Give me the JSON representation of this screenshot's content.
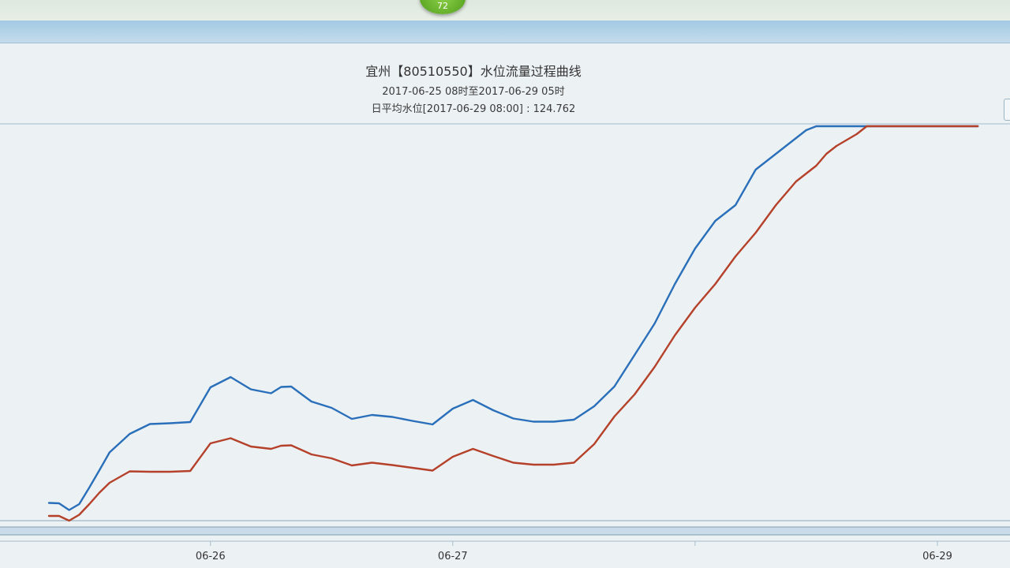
{
  "badge": {
    "text": "72"
  },
  "chart_data": {
    "type": "line",
    "title": "宜州【80510550】水位流量过程曲线",
    "subtitle": "2017-06-25 08时至2017-06-29 05时",
    "subtitle2": "日平均水位[2017-06-29 08:00] : 124.762",
    "xlabel": "",
    "ylabel": "",
    "x_range_hours": [
      0,
      93
    ],
    "y_range": [
      0,
      100
    ],
    "grid": false,
    "x_ticks": [
      {
        "hour": 16,
        "label": "06-26"
      },
      {
        "hour": 40,
        "label": "06-27"
      },
      {
        "hour": 64,
        "label": ""
      },
      {
        "hour": 88,
        "label": "06-29"
      }
    ],
    "x_hours": [
      0,
      1,
      2,
      3,
      4,
      5,
      6,
      8,
      10,
      12,
      14,
      16,
      18,
      20,
      22,
      23,
      24,
      26,
      28,
      30,
      32,
      34,
      36,
      38,
      40,
      42,
      44,
      46,
      48,
      50,
      52,
      54,
      56,
      58,
      60,
      62,
      64,
      66,
      68,
      70,
      72,
      73,
      74,
      75,
      76,
      77,
      78,
      80,
      81,
      82,
      84,
      86,
      88,
      90,
      92
    ],
    "series": [
      {
        "color": "#2a6fba",
        "values": [
          4.5,
          4.4,
          2.7,
          4.2,
          8.4,
          12.8,
          17.3,
          22.0,
          24.5,
          24.7,
          25.0,
          33.8,
          36.4,
          33.3,
          32.3,
          33.9,
          34.0,
          30.2,
          28.6,
          25.8,
          26.8,
          26.3,
          25.3,
          24.4,
          28.4,
          30.6,
          28.0,
          25.9,
          25.1,
          25.1,
          25.6,
          29.0,
          34.0,
          42.0,
          50.0,
          60.0,
          69.0,
          76.0,
          80.0,
          89.0,
          93.0,
          95.0,
          97.0,
          99.0,
          100.0,
          100.0,
          100.0,
          100.0,
          100.0,
          100.0,
          100.0,
          100.0,
          100.0,
          100.0,
          100.0
        ]
      },
      {
        "color": "#b5412a",
        "values": [
          1.2,
          1.2,
          0.0,
          1.5,
          4.2,
          7.1,
          9.6,
          12.5,
          12.4,
          12.4,
          12.6,
          19.6,
          20.9,
          18.8,
          18.2,
          19.0,
          19.1,
          16.8,
          15.8,
          14.0,
          14.7,
          14.1,
          13.4,
          12.7,
          16.2,
          18.2,
          16.4,
          14.7,
          14.2,
          14.2,
          14.7,
          19.4,
          26.4,
          32.0,
          39.0,
          47.0,
          54.0,
          60.0,
          67.0,
          73.0,
          80.0,
          83.0,
          86.0,
          88.0,
          90.0,
          93.0,
          95.0,
          98.0,
          100.0,
          100.0,
          100.0,
          100.0,
          100.0,
          100.0,
          100.0
        ]
      }
    ]
  }
}
